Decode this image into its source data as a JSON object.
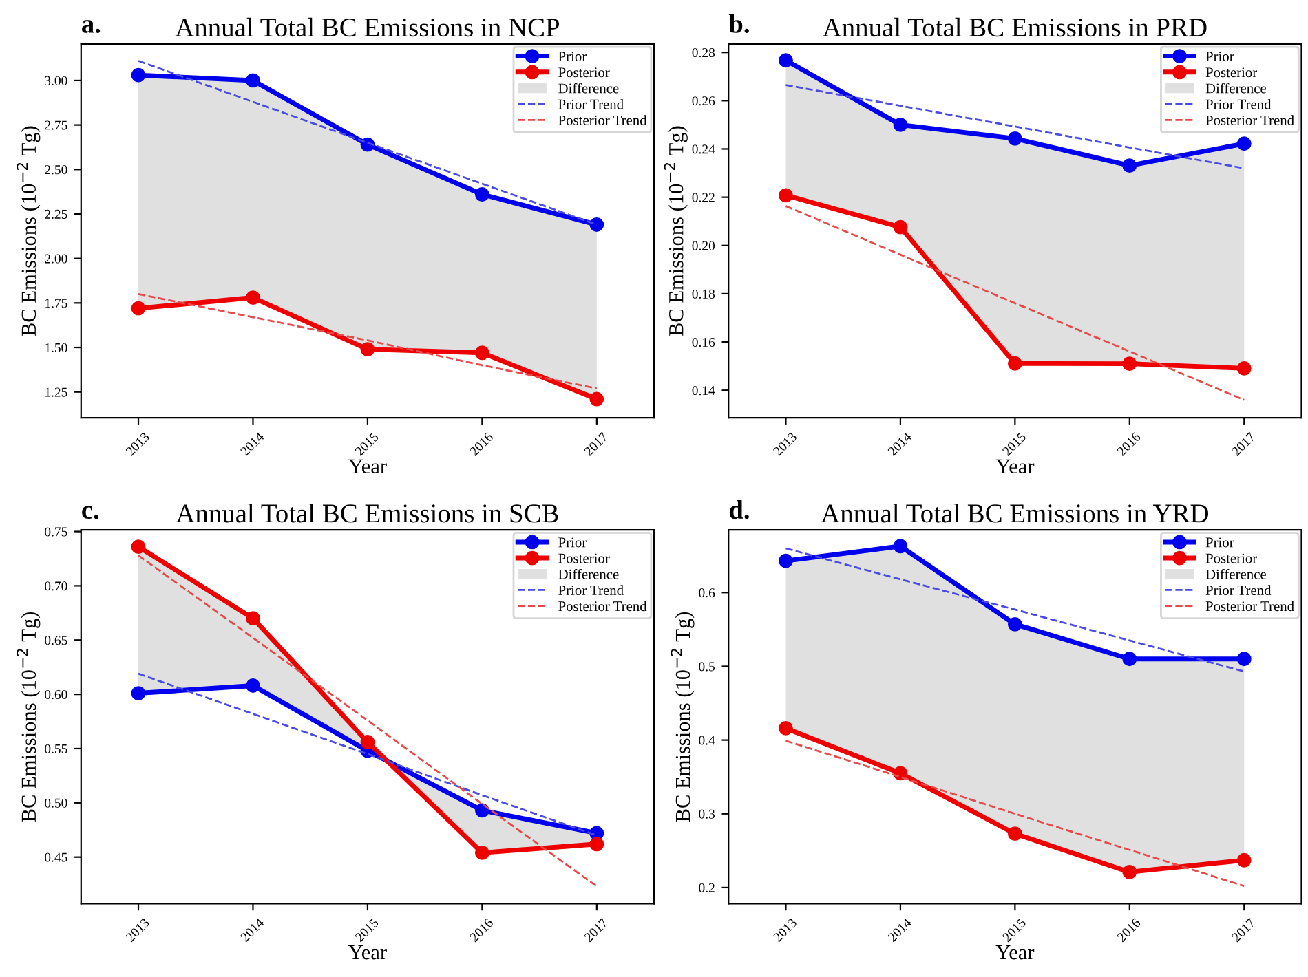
{
  "chart_data": [
    {
      "type": "line",
      "title": "Annual Total BC Emissions in NCP",
      "annotations": [
        "a."
      ],
      "xlabel": "Year",
      "ylabel": "BC Emissions (10$^{−2}$ Tg)",
      "x": [
        2013,
        2014,
        2015,
        2016,
        2017
      ],
      "xlim": [
        2012.5,
        2017.5
      ],
      "xticks": [
        2013,
        2014,
        2015,
        2016,
        2017
      ],
      "ylim": [
        1.105,
        3.205
      ],
      "yticks": [
        {
          "value": 1.25,
          "label": "1.25"
        },
        {
          "value": 1.5,
          "label": "1.50"
        },
        {
          "value": 1.75,
          "label": "1.75"
        },
        {
          "value": 2.0,
          "label": "2.00"
        },
        {
          "value": 2.25,
          "label": "2.25"
        },
        {
          "value": 2.5,
          "label": "2.50"
        },
        {
          "value": 2.75,
          "label": "2.75"
        },
        {
          "value": 3.0,
          "label": "3.00"
        }
      ],
      "legend": "top right",
      "series": [
        {
          "name": "Prior",
          "type": "line",
          "color": "#0000ee",
          "marker": "circle",
          "values": [
            3.03,
            3.0,
            2.64,
            2.36,
            2.19
          ]
        },
        {
          "name": "Posterior",
          "type": "line",
          "color": "#ee0000",
          "marker": "circle",
          "values": [
            1.72,
            1.78,
            1.49,
            1.47,
            1.21
          ]
        },
        {
          "name": "Difference",
          "type": "area",
          "color": "#e0e0e0",
          "values": [
            null,
            null,
            null,
            null,
            null
          ],
          "lower": [
            1.72,
            1.78,
            1.49,
            1.47,
            1.21
          ],
          "upper": [
            3.03,
            3.0,
            2.64,
            2.36,
            2.19
          ]
        },
        {
          "name": "Prior Trend",
          "type": "line",
          "color": "#4a4ae6",
          "line_style": "dashed",
          "values": [
            3.11,
            2.88,
            2.65,
            2.42,
            2.19
          ]
        },
        {
          "name": "Posterior Trend",
          "type": "line",
          "color": "#e84a4a",
          "line_style": "dashed",
          "values": [
            1.8,
            1.67,
            1.54,
            1.4,
            1.27
          ]
        }
      ]
    },
    {
      "type": "line",
      "title": "Annual Total BC Emissions in PRD",
      "annotations": [
        "b."
      ],
      "xlabel": "Year",
      "ylabel": "BC Emissions (10$^{−2}$ Tg)",
      "x": [
        2013,
        2014,
        2015,
        2016,
        2017
      ],
      "xlim": [
        2012.5,
        2017.5
      ],
      "xticks": [
        2013,
        2014,
        2015,
        2016,
        2017
      ],
      "ylim": [
        0.1286,
        0.2835
      ],
      "yticks": [
        {
          "value": 0.14,
          "label": "0.14"
        },
        {
          "value": 0.16,
          "label": "0.16"
        },
        {
          "value": 0.18,
          "label": "0.18"
        },
        {
          "value": 0.2,
          "label": "0.20"
        },
        {
          "value": 0.22,
          "label": "0.22"
        },
        {
          "value": 0.24,
          "label": "0.24"
        },
        {
          "value": 0.26,
          "label": "0.26"
        },
        {
          "value": 0.28,
          "label": "0.28"
        }
      ],
      "legend": "top right",
      "series": [
        {
          "name": "Prior",
          "type": "line",
          "color": "#0000ee",
          "marker": "circle",
          "values": [
            0.2767,
            0.25,
            0.2443,
            0.2331,
            0.2422
          ]
        },
        {
          "name": "Posterior",
          "type": "line",
          "color": "#ee0000",
          "marker": "circle",
          "values": [
            0.2208,
            0.2076,
            0.1511,
            0.151,
            0.1491
          ]
        },
        {
          "name": "Difference",
          "type": "area",
          "color": "#e0e0e0",
          "values": [
            null,
            null,
            null,
            null,
            null
          ],
          "lower": [
            0.2208,
            0.2076,
            0.1511,
            0.151,
            0.1491
          ],
          "upper": [
            0.2767,
            0.25,
            0.2443,
            0.2331,
            0.2422
          ]
        },
        {
          "name": "Prior Trend",
          "type": "line",
          "color": "#4a4ae6",
          "line_style": "dashed",
          "values": [
            0.2665,
            0.2579,
            0.2493,
            0.2406,
            0.232
          ]
        },
        {
          "name": "Posterior Trend",
          "type": "line",
          "color": "#e84a4a",
          "line_style": "dashed",
          "values": [
            0.2163,
            0.1962,
            0.1761,
            0.1561,
            0.136
          ]
        }
      ]
    },
    {
      "type": "line",
      "title": "Annual Total BC Emissions in SCB",
      "annotations": [
        "c."
      ],
      "xlabel": "Year",
      "ylabel": "BC Emissions (10$^{−2}$ Tg)",
      "x": [
        2013,
        2014,
        2015,
        2016,
        2017
      ],
      "xlim": [
        2012.5,
        2017.5
      ],
      "xticks": [
        2013,
        2014,
        2015,
        2016,
        2017
      ],
      "ylim": [
        0.407,
        0.7515
      ],
      "yticks": [
        {
          "value": 0.45,
          "label": "0.45"
        },
        {
          "value": 0.5,
          "label": "0.50"
        },
        {
          "value": 0.55,
          "label": "0.55"
        },
        {
          "value": 0.6,
          "label": "0.60"
        },
        {
          "value": 0.65,
          "label": "0.65"
        },
        {
          "value": 0.7,
          "label": "0.70"
        },
        {
          "value": 0.75,
          "label": "0.75"
        }
      ],
      "legend": "top right",
      "series": [
        {
          "name": "Prior",
          "type": "line",
          "color": "#0000ee",
          "marker": "circle",
          "values": [
            0.601,
            0.608,
            0.548,
            0.493,
            0.472
          ]
        },
        {
          "name": "Posterior",
          "type": "line",
          "color": "#ee0000",
          "marker": "circle",
          "values": [
            0.736,
            0.67,
            0.556,
            0.454,
            0.462
          ]
        },
        {
          "name": "Difference",
          "type": "area",
          "color": "#e0e0e0",
          "values": [
            null,
            null,
            null,
            null,
            null
          ],
          "lower": [
            0.601,
            0.608,
            0.548,
            0.493,
            0.472
          ],
          "upper": [
            0.736,
            0.67,
            0.556,
            0.454,
            0.462
          ]
        },
        {
          "name": "Prior Trend",
          "type": "line",
          "color": "#4a4ae6",
          "line_style": "dashed",
          "values": [
            0.619,
            0.582,
            0.545,
            0.507,
            0.47
          ]
        },
        {
          "name": "Posterior Trend",
          "type": "line",
          "color": "#e84a4a",
          "line_style": "dashed",
          "values": [
            0.728,
            0.652,
            0.576,
            0.499,
            0.423
          ]
        }
      ]
    },
    {
      "type": "line",
      "title": "Annual Total BC Emissions in YRD",
      "annotations": [
        "d."
      ],
      "xlabel": "Year",
      "ylabel": "BC Emissions (10$^{−2}$ Tg)",
      "x": [
        2013,
        2014,
        2015,
        2016,
        2017
      ],
      "xlim": [
        2012.5,
        2017.5
      ],
      "xticks": [
        2013,
        2014,
        2015,
        2016,
        2017
      ],
      "ylim": [
        0.178,
        0.685
      ],
      "yticks": [
        0.2,
        0.3,
        0.4,
        0.5,
        0.6
      ],
      "legend": "top right",
      "series": [
        {
          "name": "Prior",
          "type": "line",
          "color": "#0000ee",
          "marker": "circle",
          "values": [
            0.643,
            0.663,
            0.557,
            0.51,
            0.51
          ]
        },
        {
          "name": "Posterior",
          "type": "line",
          "color": "#ee0000",
          "marker": "circle",
          "values": [
            0.416,
            0.355,
            0.273,
            0.221,
            0.237
          ]
        },
        {
          "name": "Difference",
          "type": "area",
          "color": "#e0e0e0",
          "values": [
            null,
            null,
            null,
            null,
            null
          ],
          "lower": [
            0.416,
            0.355,
            0.273,
            0.221,
            0.237
          ],
          "upper": [
            0.643,
            0.663,
            0.557,
            0.51,
            0.51
          ]
        },
        {
          "name": "Prior Trend",
          "type": "line",
          "color": "#4a4ae6",
          "line_style": "dashed",
          "values": [
            0.66,
            0.618,
            0.577,
            0.535,
            0.493
          ]
        },
        {
          "name": "Posterior Trend",
          "type": "line",
          "color": "#e84a4a",
          "line_style": "dashed",
          "values": [
            0.399,
            0.35,
            0.3,
            0.251,
            0.202
          ]
        }
      ]
    }
  ]
}
